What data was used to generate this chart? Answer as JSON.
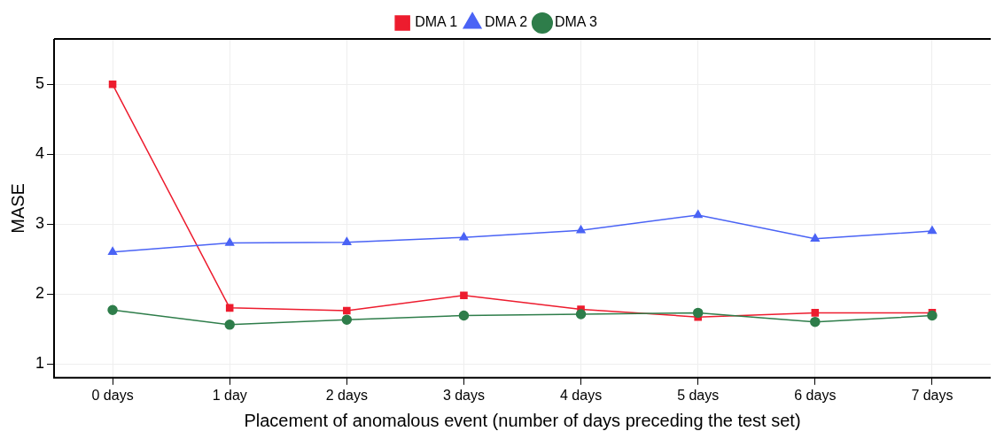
{
  "chart_data": {
    "type": "line",
    "xlabel": "Placement of anomalous event (number of days preceding the test set)",
    "ylabel": "MASE",
    "categories": [
      "0 days",
      "1 day",
      "2 days",
      "3 days",
      "4 days",
      "5 days",
      "6 days",
      "7 days"
    ],
    "series": [
      {
        "name": "DMA 1",
        "color": "#ed1c2e",
        "marker": "square",
        "values": [
          5.0,
          1.8,
          1.76,
          1.98,
          1.78,
          1.67,
          1.73,
          1.73
        ]
      },
      {
        "name": "DMA 2",
        "color": "#4a63f5",
        "marker": "triangle",
        "values": [
          2.6,
          2.73,
          2.74,
          2.81,
          2.91,
          3.13,
          2.79,
          2.9
        ]
      },
      {
        "name": "DMA 3",
        "color": "#2e7d4a",
        "marker": "circle",
        "values": [
          1.77,
          1.56,
          1.63,
          1.69,
          1.71,
          1.73,
          1.6,
          1.69
        ]
      }
    ],
    "ylim": [
      0.8,
      5.65
    ],
    "yticks": [
      1,
      2,
      3,
      4,
      5
    ],
    "grid": true,
    "legend": "top"
  }
}
